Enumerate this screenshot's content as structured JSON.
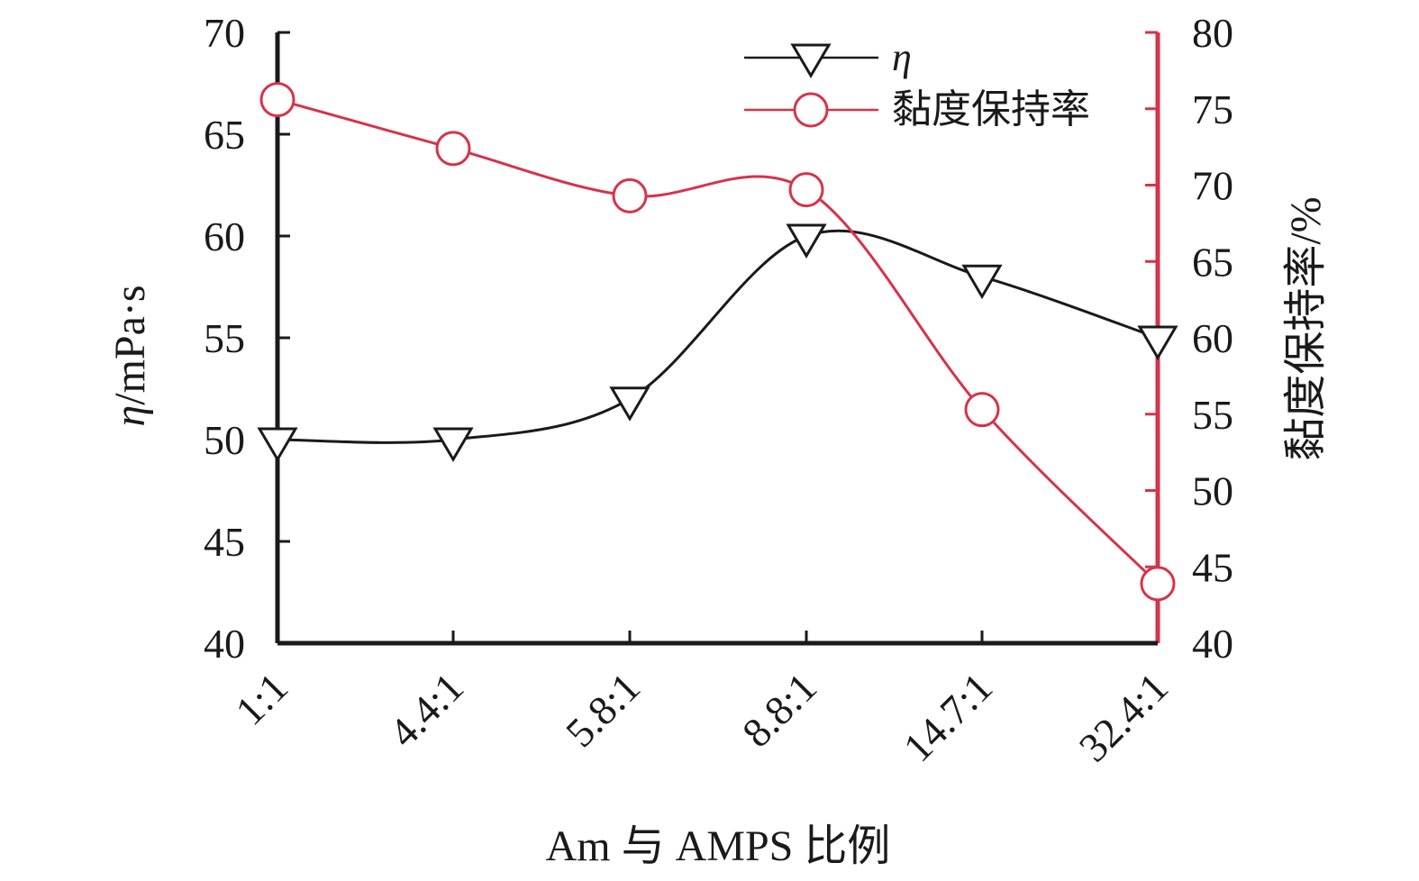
{
  "chart_data": {
    "type": "line",
    "categories": [
      "1:1",
      "4.4:1",
      "5.8:1",
      "8.8:1",
      "14.7:1",
      "32.4:1"
    ],
    "xlabel": "Am 与 AMPS 比例",
    "ylabel_symbol": "η",
    "ylabel_unit": "/mPa·s",
    "y2label": "黏度保持率/%",
    "ylim": [
      40,
      70
    ],
    "y2lim": [
      40,
      80
    ],
    "yticks": [
      40,
      45,
      50,
      55,
      60,
      65,
      70
    ],
    "y2ticks": [
      40,
      45,
      50,
      55,
      60,
      65,
      70,
      75,
      80
    ],
    "grid": false,
    "legend_position": "top-right",
    "series": [
      {
        "name": "η",
        "axis": "left",
        "marker": "triangle-down",
        "color": "#1a1a1a",
        "values": [
          50,
          50,
          52,
          60,
          58,
          55
        ]
      },
      {
        "name": "黏度保持率",
        "axis": "right",
        "marker": "circle",
        "color": "#d6334a",
        "values": [
          75.6,
          72.4,
          69.3,
          69.7,
          55.3,
          43.9
        ]
      }
    ]
  }
}
